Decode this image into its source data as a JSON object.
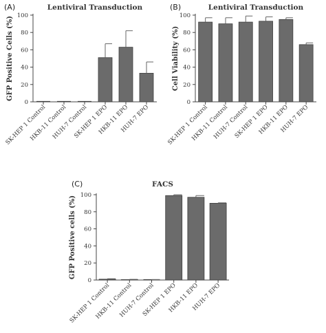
{
  "chart_data": [
    {
      "type": "bar",
      "panel": "(A)",
      "title": "Lentiviral Transduction",
      "ylabel": "GFP Positive Cells (%)",
      "xlabel": "",
      "ylim": [
        0,
        100
      ],
      "yticks": [
        0,
        20,
        40,
        60,
        80,
        100
      ],
      "categories": [
        "SK-HEP 1 Control",
        "HKB-11 Control",
        "HUH-7 Control",
        "SK-HEP 1 EPO",
        "HKB-11 EPO",
        "HUH-7 EPO"
      ],
      "values": [
        0,
        0,
        0,
        51,
        63,
        33
      ],
      "errors": [
        0,
        0,
        0,
        16,
        19,
        13
      ],
      "grid": false
    },
    {
      "type": "bar",
      "panel": "(B)",
      "title": "Lentiviral Transduction",
      "ylabel": "Cell Viability (%)",
      "xlabel": "",
      "ylim": [
        0,
        100
      ],
      "yticks": [
        0,
        20,
        40,
        60,
        80,
        100
      ],
      "categories": [
        "SK-HEP 1 Control",
        "HKB-11 Control",
        "HUH-7 Control",
        "SK-HEP 1 EPO",
        "HKB-11 EPO",
        "HUH-7 EPO"
      ],
      "values": [
        92,
        90,
        92,
        93,
        95,
        66
      ],
      "errors": [
        5,
        7,
        7,
        5,
        2,
        2
      ],
      "grid": false
    },
    {
      "type": "bar",
      "panel": "(C)",
      "title": "FACS",
      "ylabel": "GFP Positive cells (%)",
      "xlabel": "",
      "ylim": [
        0,
        100
      ],
      "yticks": [
        0,
        20,
        40,
        60,
        80,
        100
      ],
      "categories": [
        "SK-HEP 1 Control",
        "HKB-11 Control",
        "HUH-7 Control",
        "SK-HEP 1 EPO",
        "HKB-11 EPO",
        "HUH-7 EPO"
      ],
      "values": [
        1,
        0.5,
        0.3,
        99,
        97,
        90
      ],
      "errors": [
        0.5,
        0.3,
        0.2,
        1,
        2,
        0.5
      ],
      "grid": false
    }
  ]
}
